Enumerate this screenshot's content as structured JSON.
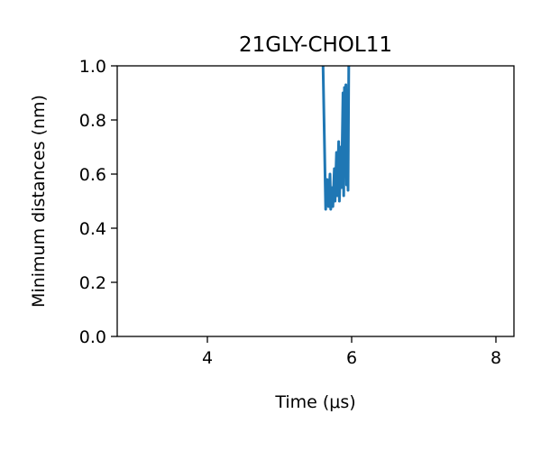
{
  "chart_data": {
    "type": "line",
    "title": "21GLY-CHOL11",
    "xlabel": "Time (μs)",
    "ylabel": "Minimum distances (nm)",
    "xlim": [
      2.75,
      8.25
    ],
    "ylim": [
      0.0,
      1.0
    ],
    "x_ticks": [
      4,
      6,
      8
    ],
    "y_ticks": [
      0.0,
      0.2,
      0.4,
      0.6,
      0.8,
      1.0
    ],
    "x_tick_labels": [
      "4",
      "6",
      "8"
    ],
    "y_tick_labels": [
      "0.0",
      "0.2",
      "0.4",
      "0.6",
      "0.8",
      "1.0"
    ],
    "grid": false,
    "series": [
      {
        "color": "#1f77b4",
        "x": [
          5.6,
          5.64,
          5.66,
          5.68,
          5.7,
          5.71,
          5.73,
          5.74,
          5.76,
          5.77,
          5.79,
          5.8,
          5.82,
          5.83,
          5.85,
          5.86,
          5.88,
          5.89,
          5.9,
          5.91,
          5.92,
          5.93,
          5.94,
          5.95,
          5.96,
          5.97
        ],
        "y": [
          1.05,
          0.47,
          0.58,
          0.48,
          0.6,
          0.47,
          0.55,
          0.48,
          0.62,
          0.5,
          0.68,
          0.52,
          0.72,
          0.5,
          0.7,
          0.55,
          0.9,
          0.52,
          0.92,
          0.6,
          0.93,
          0.56,
          0.88,
          0.54,
          1.0,
          1.05
        ]
      }
    ]
  }
}
